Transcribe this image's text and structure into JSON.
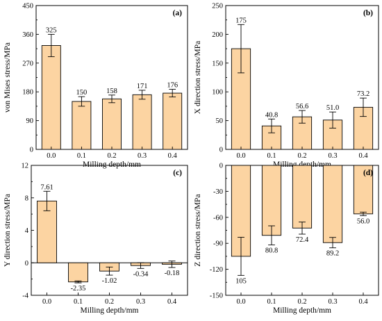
{
  "colors": {
    "bar_fill": "#fcd4a2",
    "bar_stroke": "#000000",
    "background": "#ffffff"
  },
  "chart_data": [
    {
      "type": "bar",
      "panel": "(a)",
      "categories": [
        "0.0",
        "0.1",
        "0.2",
        "0.3",
        "0.4"
      ],
      "values": [
        325,
        150,
        158,
        171,
        176
      ],
      "value_labels": [
        "325",
        "150",
        "158",
        "171",
        "176"
      ],
      "errors": [
        35,
        15,
        12,
        14,
        12
      ],
      "xlabel": "Milling depth/mm",
      "ylabel": "von Mises stress/MPa",
      "ylim": [
        0,
        450
      ],
      "yticks": [
        0,
        90,
        180,
        270,
        360,
        450
      ],
      "ytick_labels": [
        "0",
        "90",
        "180",
        "270",
        "360",
        "450"
      ],
      "grid": false
    },
    {
      "type": "bar",
      "panel": "(b)",
      "categories": [
        "0.0",
        "0.1",
        "0.2",
        "0.3",
        "0.4"
      ],
      "values": [
        175,
        40.8,
        56.6,
        51.0,
        73.2
      ],
      "value_labels": [
        "175",
        "40.8",
        "56.6",
        "51.0",
        "73.2"
      ],
      "errors": [
        42,
        12,
        11,
        14,
        16
      ],
      "xlabel": "Milling depth/mm",
      "ylabel": "X direction stress/MPa",
      "ylim": [
        0,
        250
      ],
      "yticks": [
        0,
        50,
        100,
        150,
        200,
        250
      ],
      "ytick_labels": [
        "0",
        "50",
        "100",
        "150",
        "200",
        "250"
      ],
      "grid": false
    },
    {
      "type": "bar",
      "panel": "(c)",
      "categories": [
        "0.0",
        "0.1",
        "0.2",
        "0.3",
        "0.4"
      ],
      "values": [
        7.61,
        -2.35,
        -1.02,
        -0.34,
        -0.18
      ],
      "value_labels": [
        "7.61",
        "-2.35",
        "-1.02",
        "-0.34",
        "-0.18"
      ],
      "errors": [
        1.2,
        0.12,
        0.5,
        0.35,
        0.4
      ],
      "xlabel": "Milling depth/mm",
      "ylabel": "Y direction stress/MPa",
      "ylim": [
        -4,
        12
      ],
      "yticks": [
        -4,
        0,
        4,
        8,
        12
      ],
      "ytick_labels": [
        "-4",
        "0",
        "4",
        "8",
        "12"
      ],
      "grid": false
    },
    {
      "type": "bar",
      "panel": "(d)",
      "categories": [
        "0.0",
        "0.1",
        "0.2",
        "0.3",
        "0.4"
      ],
      "values": [
        -105,
        -80.8,
        -72.4,
        -89.2,
        -56.0
      ],
      "value_labels": [
        "105",
        "80.8",
        "72.4",
        "89.2",
        "56.0"
      ],
      "errors": [
        22,
        11,
        7,
        6,
        2
      ],
      "xlabel": "Milling depth/mm",
      "ylabel": "Z direction stress/MPa",
      "ylim": [
        -150,
        0
      ],
      "yticks": [
        -150,
        -120,
        -90,
        -60,
        -30,
        0
      ],
      "ytick_labels": [
        "-150",
        "-120",
        "-90",
        "-60",
        "-30",
        "0"
      ],
      "grid": false
    }
  ]
}
